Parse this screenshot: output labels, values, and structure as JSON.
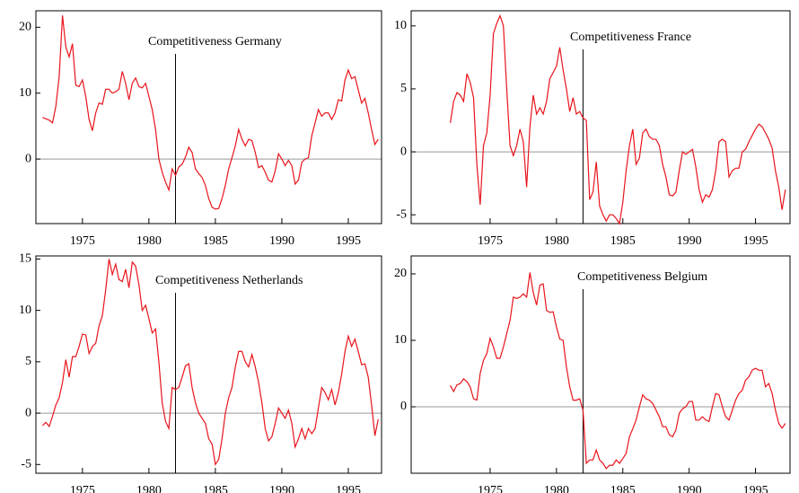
{
  "chart_data": [
    {
      "type": "line",
      "title": "Competitiveness Germany",
      "color": "#e8141b",
      "vline": 1982,
      "zero_line": true,
      "xlim": [
        1971.5,
        1997.5
      ],
      "xticks": [
        1975,
        1980,
        1985,
        1990,
        1995
      ],
      "ylim": [
        -9.8,
        22.5
      ],
      "yticks": [
        0,
        10,
        20
      ],
      "x": [
        1972,
        1972.25,
        1972.5,
        1972.75,
        1973,
        1973.25,
        1973.5,
        1973.75,
        1974,
        1974.25,
        1974.5,
        1974.75,
        1975,
        1975.25,
        1975.5,
        1975.75,
        1976,
        1976.25,
        1976.5,
        1976.75,
        1977,
        1977.25,
        1977.5,
        1977.75,
        1978,
        1978.25,
        1978.5,
        1978.75,
        1979,
        1979.25,
        1979.5,
        1979.75,
        1980,
        1980.25,
        1980.5,
        1980.75,
        1981,
        1981.25,
        1981.5,
        1981.75,
        1982,
        1982.25,
        1982.5,
        1982.75,
        1983,
        1983.25,
        1983.5,
        1983.75,
        1984,
        1984.25,
        1984.5,
        1984.75,
        1985,
        1985.25,
        1985.5,
        1985.75,
        1986,
        1986.25,
        1986.5,
        1986.75,
        1987,
        1987.25,
        1987.5,
        1987.75,
        1988,
        1988.25,
        1988.5,
        1988.75,
        1989,
        1989.25,
        1989.5,
        1989.75,
        1990,
        1990.25,
        1990.5,
        1990.75,
        1991,
        1991.25,
        1991.5,
        1991.75,
        1992,
        1992.25,
        1992.5,
        1992.75,
        1993,
        1993.25,
        1993.5,
        1993.75,
        1994,
        1994.25,
        1994.5,
        1994.75,
        1995,
        1995.25,
        1995.5,
        1995.75,
        1996,
        1996.25,
        1996.5,
        1996.75,
        1997,
        1997.25
      ],
      "values": [
        6.3,
        6.1,
        5.9,
        5.5,
        8.0,
        12.5,
        21.8,
        17,
        15.5,
        17.5,
        11.2,
        11.0,
        12.0,
        9.5,
        6.0,
        4.3,
        7.0,
        8.5,
        8.3,
        10.6,
        10.6,
        10.0,
        10.2,
        10.6,
        13.3,
        11.5,
        9.0,
        11.5,
        12.3,
        11.0,
        10.8,
        11.5,
        9.5,
        7.5,
        4.5,
        0.0,
        -2.0,
        -3.5,
        -4.7,
        -1.5,
        -2.5,
        -1.2,
        -0.8,
        0.3,
        1.8,
        1.0,
        -1.5,
        -2.2,
        -2.8,
        -4.0,
        -6.0,
        -7.3,
        -7.6,
        -7.5,
        -6.0,
        -4.0,
        -1.5,
        0.2,
        2.0,
        4.5,
        3.0,
        2.0,
        3.0,
        2.8,
        1.0,
        -1.3,
        -1.0,
        -2.0,
        -3.2,
        -3.5,
        -1.8,
        0.8,
        0.0,
        -1.0,
        -0.2,
        -1.0,
        -3.8,
        -3.2,
        -0.5,
        0.0,
        0.2,
        3.5,
        5.5,
        7.5,
        6.5,
        7.0,
        7.0,
        6.0,
        7.0,
        9.0,
        8.8,
        12.0,
        13.5,
        12.2,
        12.5,
        10.5,
        8.5,
        9.2,
        7.0,
        4.5,
        2.2,
        3.0
      ]
    },
    {
      "type": "line",
      "title": "Competitiveness France",
      "color": "#e8141b",
      "vline": 1982,
      "zero_line": true,
      "xlim": [
        1969.05,
        1997.6
      ],
      "xticks": [
        1975,
        1980,
        1985,
        1990,
        1995
      ],
      "ylim": [
        -5.7,
        11.2
      ],
      "yticks": [
        -5,
        0,
        5,
        10
      ],
      "x": [
        1972,
        1972.25,
        1972.5,
        1972.75,
        1973,
        1973.25,
        1973.5,
        1973.75,
        1974,
        1974.25,
        1974.5,
        1974.75,
        1975,
        1975.25,
        1975.5,
        1975.75,
        1976,
        1976.25,
        1976.5,
        1976.75,
        1977,
        1977.25,
        1977.5,
        1977.75,
        1978,
        1978.25,
        1978.5,
        1978.75,
        1979,
        1979.25,
        1979.5,
        1979.75,
        1980,
        1980.25,
        1980.5,
        1980.75,
        1981,
        1981.25,
        1981.5,
        1981.75,
        1982,
        1982.25,
        1982.5,
        1982.75,
        1983,
        1983.25,
        1983.5,
        1983.75,
        1984,
        1984.25,
        1984.5,
        1984.75,
        1985,
        1985.25,
        1985.5,
        1985.75,
        1986,
        1986.25,
        1986.5,
        1986.75,
        1987,
        1987.25,
        1987.5,
        1987.75,
        1988,
        1988.25,
        1988.5,
        1988.75,
        1989,
        1989.25,
        1989.5,
        1989.75,
        1990,
        1990.25,
        1990.5,
        1990.75,
        1991,
        1991.25,
        1991.5,
        1991.75,
        1992,
        1992.25,
        1992.5,
        1992.75,
        1993,
        1993.25,
        1993.5,
        1993.75,
        1994,
        1994.25,
        1994.5,
        1994.75,
        1995,
        1995.25,
        1995.5,
        1995.75,
        1996,
        1996.25,
        1996.5,
        1996.75,
        1997,
        1997.25
      ],
      "values": [
        2.3,
        4.0,
        4.7,
        4.5,
        4.0,
        6.2,
        5.5,
        4.3,
        -1.0,
        -4.2,
        0.5,
        1.5,
        4.5,
        9.4,
        10.2,
        10.8,
        10.0,
        5.0,
        0.5,
        -0.3,
        0.5,
        1.8,
        0.8,
        -2.8,
        2.0,
        4.5,
        3.0,
        3.5,
        3.0,
        4.0,
        5.8,
        6.3,
        6.8,
        8.3,
        6.5,
        5.0,
        3.2,
        4.3,
        3.0,
        3.2,
        2.7,
        2.5,
        -3.8,
        -3.2,
        -0.8,
        -4.3,
        -5.0,
        -5.5,
        -5.0,
        -5.0,
        -5.3,
        -5.7,
        -4.0,
        -1.5,
        0.5,
        1.8,
        -1.0,
        -0.5,
        1.5,
        1.8,
        1.2,
        1.0,
        1.0,
        0.5,
        -1.0,
        -2.0,
        -3.4,
        -3.5,
        -3.2,
        -1.5,
        0.0,
        -0.2,
        0.0,
        0.2,
        -1.2,
        -3.0,
        -4.0,
        -3.4,
        -3.6,
        -3.0,
        -1.5,
        0.8,
        1.0,
        0.8,
        -2.0,
        -1.5,
        -1.3,
        -1.3,
        0.0,
        0.2,
        0.8,
        1.3,
        1.8,
        2.2,
        2.0,
        1.5,
        1.0,
        0.3,
        -1.5,
        -2.8,
        -4.6,
        -3.0
      ]
    },
    {
      "type": "line",
      "title": "Competitiveness Netherlands",
      "color": "#e8141b",
      "vline": 1982,
      "zero_line": true,
      "xlim": [
        1971.5,
        1997.5
      ],
      "xticks": [
        1975,
        1980,
        1985,
        1990,
        1995
      ],
      "ylim": [
        -5.85,
        15.3
      ],
      "yticks": [
        -5,
        0,
        5,
        10,
        15
      ],
      "x": [
        1972,
        1972.25,
        1972.5,
        1972.75,
        1973,
        1973.25,
        1973.5,
        1973.75,
        1974,
        1974.25,
        1974.5,
        1974.75,
        1975,
        1975.25,
        1975.5,
        1975.75,
        1976,
        1976.25,
        1976.5,
        1976.75,
        1977,
        1977.25,
        1977.5,
        1977.75,
        1978,
        1978.25,
        1978.5,
        1978.75,
        1979,
        1979.25,
        1979.5,
        1979.75,
        1980,
        1980.25,
        1980.5,
        1980.75,
        1981,
        1981.25,
        1981.5,
        1981.75,
        1982,
        1982.25,
        1982.5,
        1982.75,
        1983,
        1983.25,
        1983.5,
        1983.75,
        1984,
        1984.25,
        1984.5,
        1984.75,
        1985,
        1985.25,
        1985.5,
        1985.75,
        1986,
        1986.25,
        1986.5,
        1986.75,
        1987,
        1987.25,
        1987.5,
        1987.75,
        1988,
        1988.25,
        1988.5,
        1988.75,
        1989,
        1989.25,
        1989.5,
        1989.75,
        1990,
        1990.25,
        1990.5,
        1990.75,
        1991,
        1991.25,
        1991.5,
        1991.75,
        1992,
        1992.25,
        1992.5,
        1992.75,
        1993,
        1993.25,
        1993.5,
        1993.75,
        1994,
        1994.25,
        1994.5,
        1994.75,
        1995,
        1995.25,
        1995.5,
        1995.75,
        1996,
        1996.25,
        1996.5,
        1996.75,
        1997,
        1997.25
      ],
      "values": [
        -1.2,
        -0.9,
        -1.3,
        -0.3,
        0.8,
        1.5,
        3.0,
        5.2,
        3.5,
        5.5,
        5.5,
        6.5,
        7.7,
        7.6,
        5.8,
        6.5,
        6.8,
        8.5,
        9.5,
        12.0,
        15.0,
        13.5,
        14.5,
        13.0,
        12.8,
        14.0,
        12.2,
        14.7,
        14.3,
        12.5,
        10.0,
        10.5,
        9.2,
        7.8,
        8.2,
        5.0,
        1.0,
        -0.8,
        -1.5,
        2.5,
        2.3,
        2.5,
        3.5,
        4.6,
        4.8,
        2.5,
        1.0,
        0.0,
        -0.5,
        -1.0,
        -2.5,
        -3.0,
        -5.0,
        -4.5,
        -2.5,
        0.0,
        1.5,
        2.5,
        4.5,
        6.0,
        6.0,
        5.0,
        4.5,
        5.7,
        4.5,
        3.0,
        1.0,
        -1.5,
        -2.7,
        -2.3,
        -1.0,
        0.5,
        0.0,
        -0.5,
        0.3,
        -1.0,
        -3.3,
        -2.5,
        -1.5,
        -2.5,
        -1.5,
        -2.0,
        -1.5,
        0.5,
        2.5,
        2.0,
        1.3,
        2.3,
        0.8,
        2.0,
        3.8,
        6.0,
        7.5,
        6.5,
        7.2,
        6.0,
        4.7,
        4.8,
        3.5,
        0.8,
        -2.2,
        -0.6
      ]
    },
    {
      "type": "line",
      "title": "Competitiveness Belgium",
      "color": "#e8141b",
      "vline": 1982,
      "zero_line": true,
      "xlim": [
        1969.05,
        1997.6
      ],
      "xticks": [
        1975,
        1980,
        1985,
        1990,
        1995
      ],
      "ylim": [
        -10,
        22.7
      ],
      "yticks": [
        0,
        10,
        20
      ],
      "x": [
        1972,
        1972.25,
        1972.5,
        1972.75,
        1973,
        1973.25,
        1973.5,
        1973.75,
        1974,
        1974.25,
        1974.5,
        1974.75,
        1975,
        1975.25,
        1975.5,
        1975.75,
        1976,
        1976.25,
        1976.5,
        1976.75,
        1977,
        1977.25,
        1977.5,
        1977.75,
        1978,
        1978.25,
        1978.5,
        1978.75,
        1979,
        1979.25,
        1979.5,
        1979.75,
        1980,
        1980.25,
        1980.5,
        1980.75,
        1981,
        1981.25,
        1981.5,
        1981.75,
        1982,
        1982.25,
        1982.5,
        1982.75,
        1983,
        1983.25,
        1983.5,
        1983.75,
        1984,
        1984.25,
        1984.5,
        1984.75,
        1985,
        1985.25,
        1985.5,
        1985.75,
        1986,
        1986.25,
        1986.5,
        1986.75,
        1987,
        1987.25,
        1987.5,
        1987.75,
        1988,
        1988.25,
        1988.5,
        1988.75,
        1989,
        1989.25,
        1989.5,
        1989.75,
        1990,
        1990.25,
        1990.5,
        1990.75,
        1991,
        1991.25,
        1991.5,
        1991.75,
        1992,
        1992.25,
        1992.5,
        1992.75,
        1993,
        1993.25,
        1993.5,
        1993.75,
        1994,
        1994.25,
        1994.5,
        1994.75,
        1995,
        1995.25,
        1995.5,
        1995.75,
        1996,
        1996.25,
        1996.5,
        1996.75,
        1997,
        1997.25
      ],
      "values": [
        3.2,
        2.3,
        3.3,
        3.5,
        4.2,
        3.8,
        3.0,
        1.2,
        1.0,
        5.0,
        7.0,
        8.0,
        10.3,
        9.0,
        7.3,
        7.3,
        9.0,
        11.0,
        13.0,
        16.5,
        16.3,
        16.5,
        17.0,
        16.5,
        20.2,
        17.2,
        15.3,
        18.3,
        18.5,
        14.5,
        14.2,
        14.3,
        12.0,
        10.2,
        10.0,
        6.0,
        3.0,
        1.0,
        1.0,
        1.2,
        -0.5,
        -8.5,
        -8.0,
        -8.0,
        -6.5,
        -8.0,
        -8.5,
        -9.3,
        -8.8,
        -8.8,
        -8.0,
        -8.5,
        -7.8,
        -7.0,
        -4.5,
        -3.3,
        -2.0,
        0.0,
        1.8,
        1.2,
        1.0,
        0.5,
        -0.5,
        -1.5,
        -3.0,
        -3.0,
        -4.2,
        -4.5,
        -3.5,
        -1.0,
        -0.3,
        0.0,
        0.8,
        0.8,
        -2.0,
        -2.0,
        -1.5,
        -2.0,
        -2.2,
        0.0,
        2.0,
        1.8,
        0.0,
        -1.5,
        -2.0,
        -0.5,
        1.0,
        2.0,
        2.5,
        4.0,
        4.5,
        5.5,
        5.8,
        5.5,
        5.5,
        3.0,
        3.5,
        2.0,
        -0.5,
        -2.5,
        -3.2,
        -2.5
      ]
    }
  ]
}
